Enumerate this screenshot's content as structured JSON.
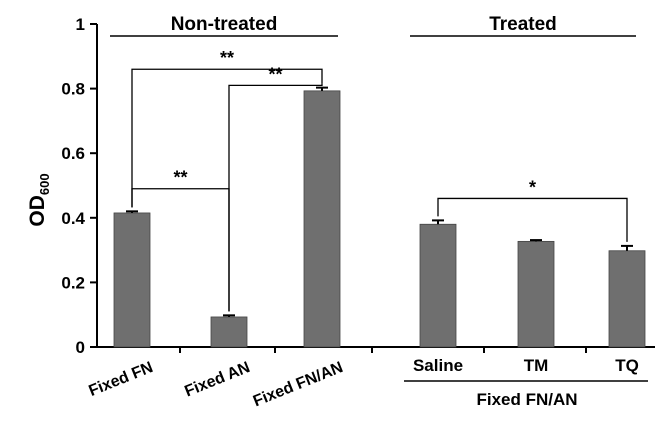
{
  "chart_data": {
    "type": "bar",
    "ylabel_main": "OD",
    "ylabel_sub": "600",
    "ylim": [
      0,
      1
    ],
    "yticks": [
      {
        "v": 0,
        "label": "0"
      },
      {
        "v": 0.2,
        "label": "0.2"
      },
      {
        "v": 0.4,
        "label": "0.4"
      },
      {
        "v": 0.6,
        "label": "0.6"
      },
      {
        "v": 0.8,
        "label": "0.8"
      },
      {
        "v": 1,
        "label": "1"
      }
    ],
    "categories": [
      "Fixed FN",
      "Fixed AN",
      "Fixed FN/AN",
      "Saline",
      "TM",
      "TQ"
    ],
    "values": [
      0.415,
      0.093,
      0.793,
      0.38,
      0.327,
      0.298
    ],
    "errors": [
      0.005,
      0.005,
      0.01,
      0.012,
      0.004,
      0.015
    ],
    "groups": [
      {
        "label": "Non-treated",
        "from": 0,
        "to": 2
      },
      {
        "label": "Treated",
        "from": 3,
        "to": 5
      }
    ],
    "subgroup_label": "Fixed FN/AN",
    "significance": [
      {
        "from": 0,
        "to": 1,
        "label": "**",
        "y": 0.49
      },
      {
        "from": 0,
        "to": 2,
        "label": "**",
        "y": 0.86
      },
      {
        "from": 1,
        "to": 2,
        "label": "**",
        "y": 0.81
      },
      {
        "from": 3,
        "to": 5,
        "label": "*",
        "y": 0.46
      }
    ]
  }
}
